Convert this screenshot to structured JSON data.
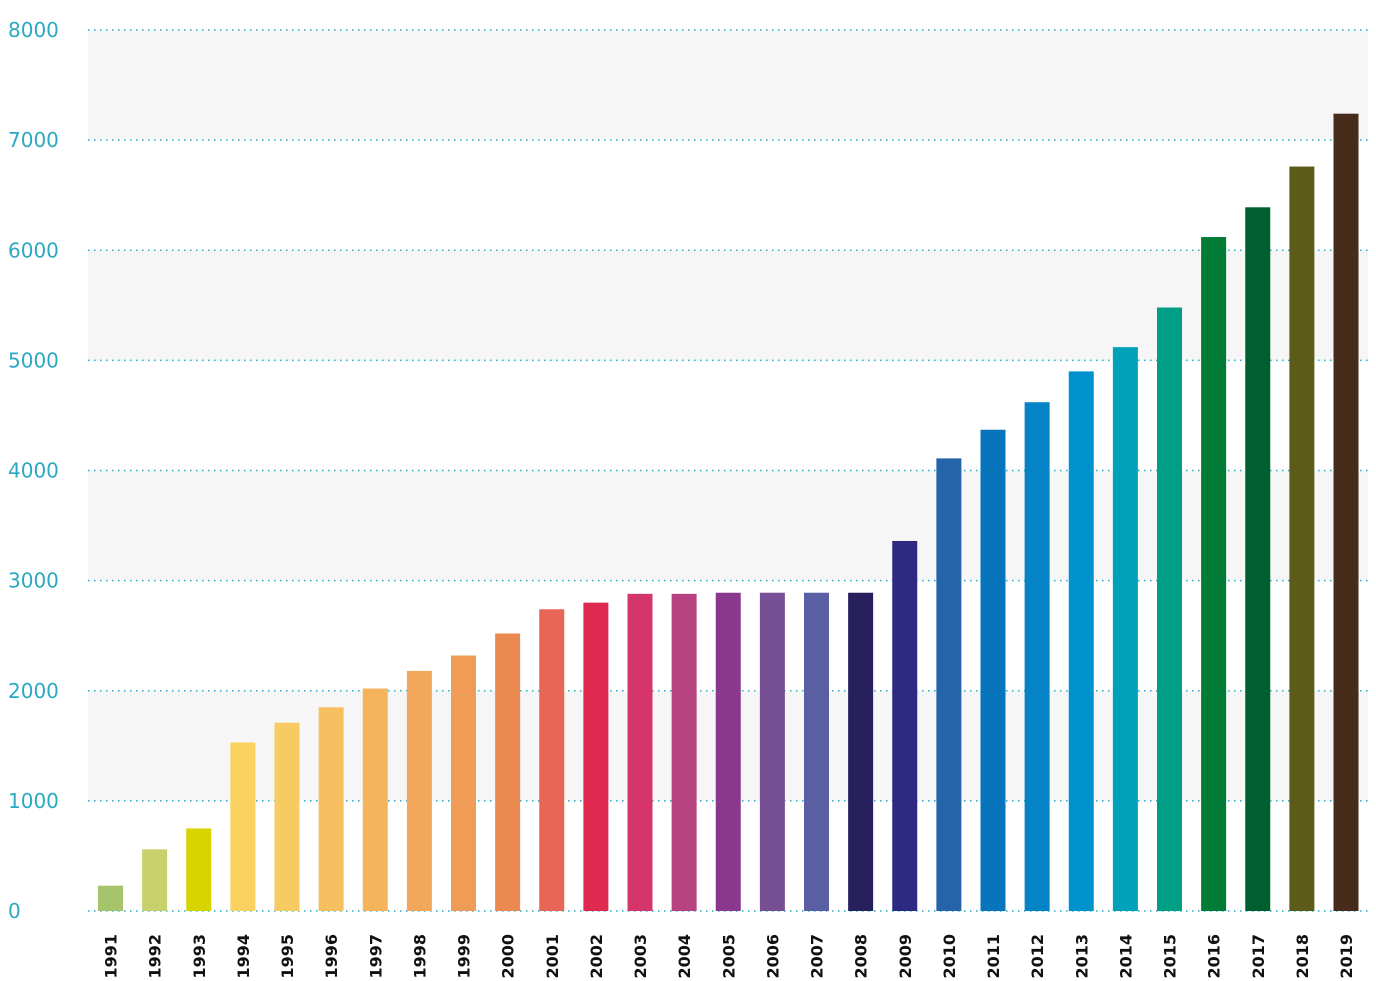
{
  "chart_data": {
    "type": "bar",
    "title": "",
    "xlabel": "",
    "ylabel": "",
    "ylim": [
      0,
      8000
    ],
    "yticks": [
      "0",
      "1000",
      "2000",
      "3000",
      "4000",
      "5000",
      "6000",
      "7000",
      "8000"
    ],
    "grid": true,
    "categories": [
      "1991",
      "1992",
      "1993",
      "1994",
      "1995",
      "1996",
      "1997",
      "1998",
      "1999",
      "2000",
      "2001",
      "2002",
      "2003",
      "2004",
      "2005",
      "2006",
      "2007",
      "2008",
      "2009",
      "2010",
      "2011",
      "2012",
      "2013",
      "2014",
      "2015",
      "2016",
      "2017",
      "2018",
      "2019"
    ],
    "values": [
      230,
      560,
      750,
      1530,
      1710,
      1850,
      2020,
      2180,
      2320,
      2520,
      2740,
      2800,
      2880,
      2880,
      2890,
      2890,
      2890,
      2890,
      3360,
      4110,
      4370,
      4620,
      4900,
      5120,
      5480,
      6120,
      6390,
      6760,
      7240
    ],
    "colors": [
      "#a5c46b",
      "#c8d06c",
      "#d8d400",
      "#fbd260",
      "#f8ca62",
      "#f6c060",
      "#f5b35c",
      "#f2a75a",
      "#ef9c56",
      "#eb8a50",
      "#e76656",
      "#e0294e",
      "#d6356c",
      "#b74280",
      "#8a378e",
      "#774f94",
      "#5a5ea3",
      "#27205d",
      "#2e2a83",
      "#2664a9",
      "#0774bb",
      "#0483c7",
      "#0092cd",
      "#00a1ba",
      "#009e85",
      "#007c36",
      "#005f2e",
      "#5c5b18",
      "#472c1b"
    ],
    "band_colors": [
      "#f5f6f5",
      "#ffffff"
    ]
  }
}
